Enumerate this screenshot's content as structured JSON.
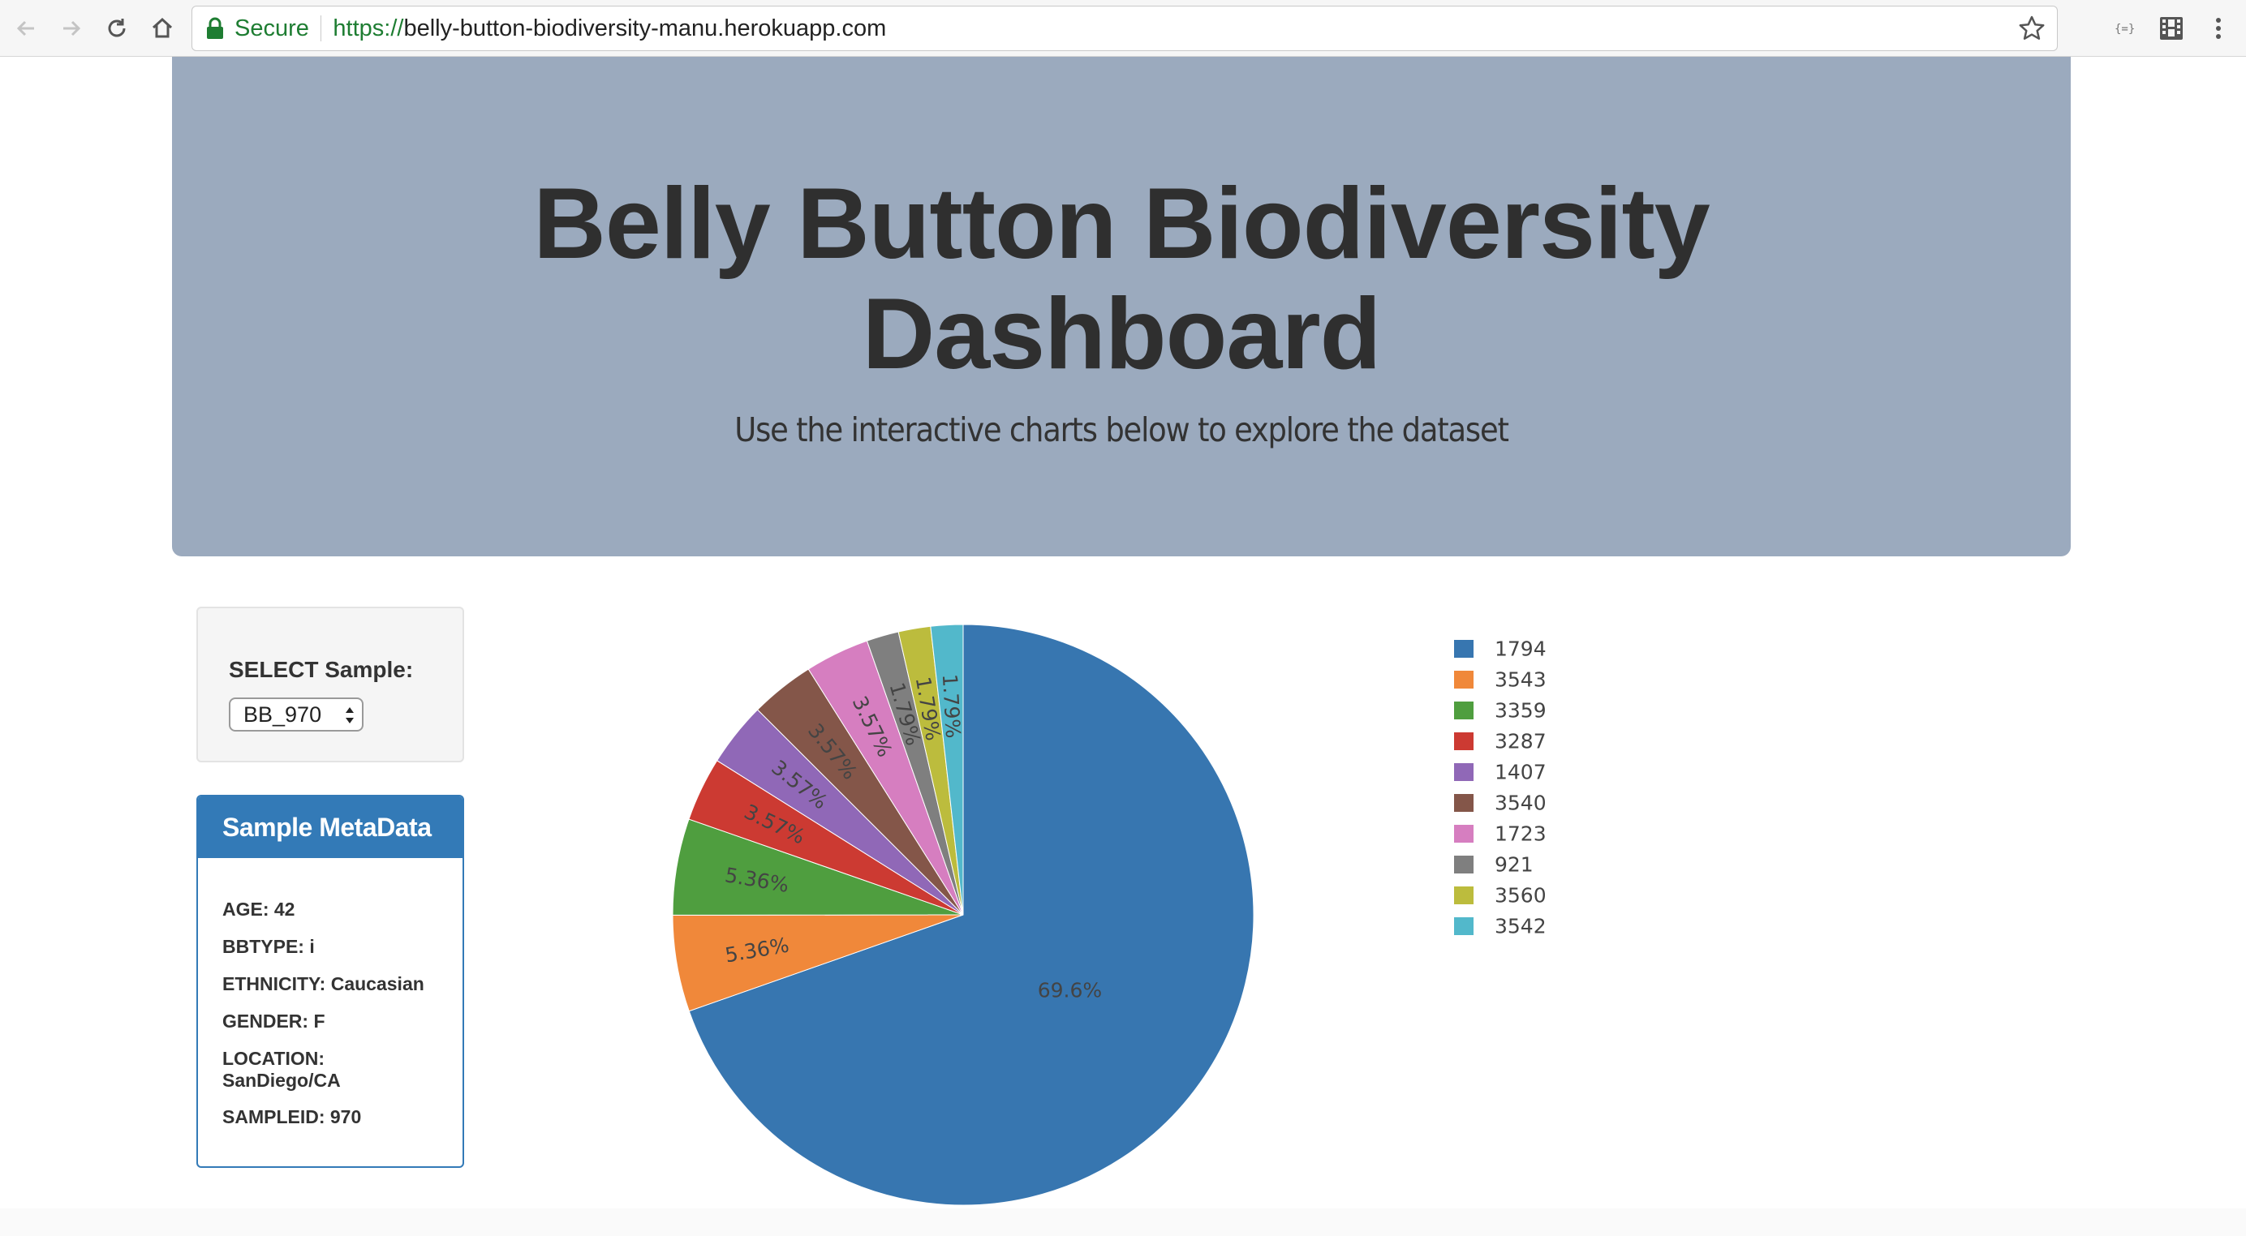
{
  "browser": {
    "secure_label": "Secure",
    "url_scheme": "https://",
    "url_host": "belly-button-biodiversity-manu.herokuapp.com"
  },
  "header": {
    "title_line1": "Belly Button Biodiversity",
    "title_line2": "Dashboard",
    "subtitle": "Use the interactive charts below to explore the dataset"
  },
  "selector": {
    "label": "SELECT Sample:",
    "selected": "BB_970"
  },
  "metadata": {
    "heading": "Sample MetaData",
    "rows": [
      "AGE: 42",
      "BBTYPE: i",
      "ETHNICITY: Caucasian",
      "GENDER: F",
      "LOCATION: SanDiego/CA",
      "SAMPLEID: 970"
    ]
  },
  "chart_data": {
    "type": "pie",
    "labels": [
      "1794",
      "3543",
      "3359",
      "3287",
      "1407",
      "3540",
      "1723",
      "921",
      "3560",
      "3542"
    ],
    "values": [
      69.6,
      5.36,
      5.36,
      3.57,
      3.57,
      3.57,
      3.57,
      1.79,
      1.79,
      1.79
    ],
    "text_labels": [
      "69.6%",
      "5.36%",
      "5.36%",
      "3.57%",
      "3.57%",
      "3.57%",
      "3.57%",
      "1.79%",
      "1.79%",
      "1.79%"
    ],
    "colors": [
      "#3776b0",
      "#f0883a",
      "#4f9e3f",
      "#cc3a32",
      "#9068b7",
      "#845649",
      "#d67ec0",
      "#7f7f7f",
      "#bcbc3d",
      "#52b8cb"
    ],
    "direction": "clockwise",
    "legend_position": "right"
  }
}
